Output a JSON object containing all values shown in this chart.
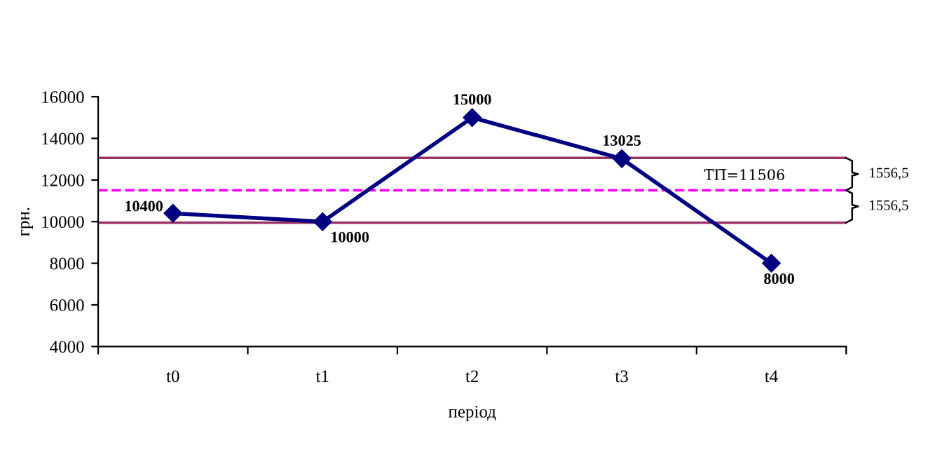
{
  "chart_data": {
    "type": "line",
    "xlabel": "період",
    "ylabel": "грн.",
    "categories": [
      "t0",
      "t1",
      "t2",
      "t3",
      "t4"
    ],
    "series": [
      {
        "color": "#000080",
        "values": [
          10400,
          10000,
          15000,
          13025,
          8000
        ]
      }
    ],
    "marker": "diamond",
    "line_style": "solid",
    "data_labels": true,
    "grid": false,
    "legend": false,
    "ylim": [
      4000,
      16000
    ],
    "yticks": [
      4000,
      6000,
      8000,
      10000,
      12000,
      14000,
      16000
    ],
    "ref_lines": [
      {
        "axis": "y",
        "value": 13062.5,
        "label": null,
        "color": "#993366",
        "line_style": "solid"
      },
      {
        "axis": "y",
        "value": 11506,
        "label": "Т̅П̅=11506",
        "color": "#ff00ff",
        "line_style": "dashed"
      },
      {
        "axis": "y",
        "value": 9949.5,
        "label": null,
        "color": "#993366",
        "line_style": "solid"
      }
    ],
    "annotations": [
      "1556,5",
      "1556,5"
    ]
  }
}
